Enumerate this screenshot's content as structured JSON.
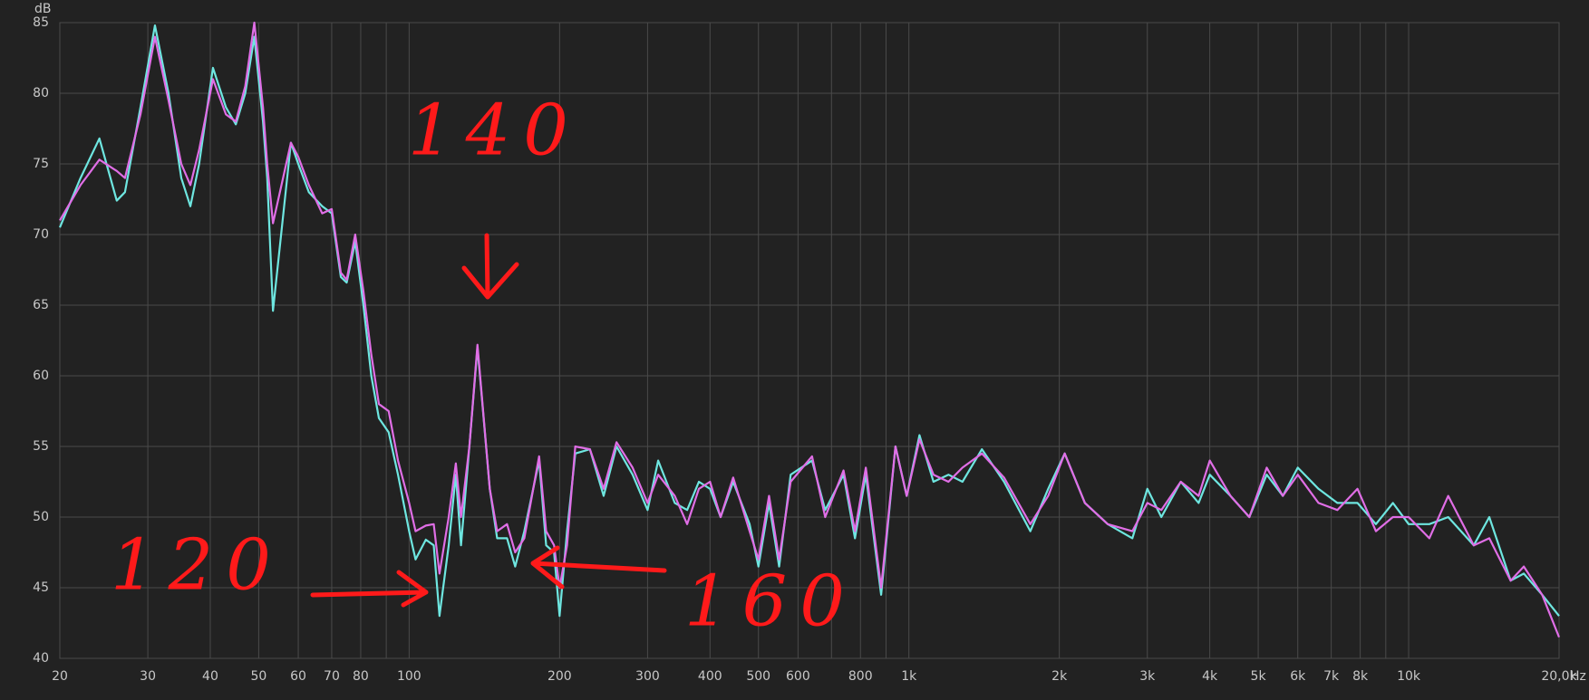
{
  "chart_data": {
    "type": "line",
    "y_label": "dB",
    "x_label": "Hz",
    "x_scale": "log",
    "grid": true,
    "xlim": [
      20,
      20000
    ],
    "ylim": [
      40,
      85
    ],
    "yticks": [
      40,
      45,
      50,
      55,
      60,
      65,
      70,
      75,
      80,
      85
    ],
    "xticks": [
      20,
      30,
      40,
      50,
      60,
      70,
      80,
      100,
      200,
      300,
      400,
      500,
      600,
      800,
      {
        "value": 1000,
        "label": "1k"
      },
      {
        "value": 2000,
        "label": "2k"
      },
      {
        "value": 3000,
        "label": "3k"
      },
      {
        "value": 4000,
        "label": "4k"
      },
      {
        "value": 5000,
        "label": "5k"
      },
      {
        "value": 6000,
        "label": "6k"
      },
      {
        "value": 7000,
        "label": "7k"
      },
      {
        "value": 8000,
        "label": "8k"
      },
      {
        "value": 10000,
        "label": "10k"
      },
      {
        "value": 20000,
        "label": "20,0k"
      }
    ],
    "xgrid_minor": [
      90,
      700,
      900,
      9000
    ],
    "x": [
      20,
      22,
      24,
      26,
      27,
      29,
      31,
      33,
      35,
      36.5,
      38,
      40.5,
      43,
      45,
      47,
      49,
      51,
      52,
      53.4,
      58,
      60,
      63,
      67,
      70,
      73,
      75,
      78,
      81,
      84,
      87,
      91,
      95,
      100,
      103,
      108,
      112,
      115,
      120,
      124,
      127,
      132,
      137,
      145,
      150,
      157,
      163,
      170,
      182,
      188,
      195,
      200,
      207,
      215,
      230,
      245,
      260,
      280,
      300,
      315,
      340,
      360,
      380,
      400,
      420,
      445,
      480,
      500,
      525,
      550,
      580,
      640,
      680,
      740,
      780,
      820,
      880,
      940,
      990,
      1050,
      1120,
      1200,
      1280,
      1400,
      1550,
      1750,
      1900,
      2050,
      2250,
      2500,
      2800,
      3000,
      3200,
      3500,
      3800,
      4000,
      4400,
      4800,
      5200,
      5600,
      6000,
      6600,
      7200,
      7900,
      8600,
      9300,
      10000,
      11000,
      12000,
      13500,
      14500,
      16000,
      17000,
      18500,
      20000
    ],
    "series": [
      {
        "color": "#6ee6e0",
        "values": [
          70.5,
          74,
          76.8,
          72.4,
          73,
          79,
          84.8,
          80,
          74,
          72,
          75,
          81.8,
          79,
          77.8,
          80,
          84,
          78,
          74,
          64.6,
          76.5,
          75,
          73,
          72,
          71.5,
          67,
          66.6,
          69.5,
          65,
          60,
          57,
          56,
          53,
          49,
          47,
          48.4,
          48,
          43,
          48,
          53,
          48,
          55,
          62,
          52,
          48.5,
          48.5,
          46.5,
          49,
          54,
          48,
          47.5,
          43,
          49,
          54.5,
          54.8,
          51.5,
          55,
          53,
          50.5,
          54,
          51,
          50.5,
          52.5,
          52,
          50,
          52.5,
          49.5,
          46.5,
          51,
          46.5,
          53,
          54,
          50.5,
          53,
          48.5,
          53,
          44.5,
          55,
          51.5,
          55.8,
          52.5,
          53,
          52.5,
          54.8,
          52.5,
          49,
          52,
          54.5,
          51,
          49.5,
          48.5,
          52,
          50,
          52.5,
          51,
          53,
          51.5,
          50,
          53,
          51.5,
          53.5,
          52,
          51,
          51,
          49.5,
          51,
          49.5,
          49.5,
          50,
          48,
          50,
          45.5,
          46,
          44.5,
          43
        ]
      },
      {
        "color": "#e06ee6",
        "values": [
          71,
          73.5,
          75.3,
          74.5,
          74,
          78.5,
          84,
          79.5,
          75,
          73.5,
          76,
          81,
          78.5,
          78,
          80.5,
          85,
          79,
          75,
          70.8,
          76.5,
          75.5,
          73.5,
          71.5,
          71.8,
          67.3,
          66.8,
          70,
          66,
          61.5,
          58,
          57.5,
          54,
          51,
          49,
          49.4,
          49.5,
          46,
          50,
          53.8,
          50,
          55,
          62.2,
          52,
          49,
          49.5,
          47.5,
          48.5,
          54.3,
          49,
          48,
          45,
          48,
          55,
          54.8,
          52,
          55.3,
          53.5,
          51,
          53,
          51.5,
          49.5,
          52,
          52.5,
          50,
          52.8,
          49,
          47,
          51.5,
          47,
          52.5,
          54.3,
          50,
          53.3,
          49,
          53.5,
          45,
          55,
          51.5,
          55.5,
          53,
          52.5,
          53.5,
          54.5,
          52.8,
          49.5,
          51.5,
          54.5,
          51,
          49.5,
          49,
          51,
          50.5,
          52.5,
          51.5,
          54,
          51.5,
          50,
          53.5,
          51.5,
          53,
          51,
          50.5,
          52,
          49,
          50,
          50,
          48.5,
          51.5,
          48,
          48.5,
          45.5,
          46.5,
          44.5,
          41.5
        ]
      }
    ],
    "annotations": [
      "140",
      "120",
      "160"
    ]
  }
}
